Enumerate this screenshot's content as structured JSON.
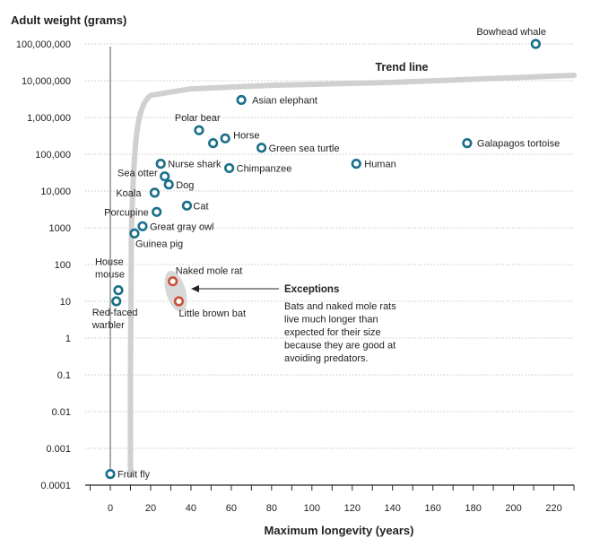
{
  "chart_data": {
    "type": "scatter",
    "title": "",
    "ylabel": "Adult weight (grams)",
    "xlabel": "Maximum longevity (years)",
    "y_scale": "log",
    "ylim": [
      0.0001,
      100000000
    ],
    "xlim": [
      -10,
      230
    ],
    "x_ticks": [
      0,
      20,
      40,
      60,
      80,
      100,
      120,
      140,
      160,
      180,
      200,
      220
    ],
    "x_tick_labels": [
      "0",
      "20",
      "40",
      "60",
      "80",
      "100",
      "120",
      "140",
      "160",
      "180",
      "200",
      "220"
    ],
    "y_ticks": [
      100000000,
      10000000,
      1000000,
      100000,
      10000,
      1000,
      100,
      10,
      1,
      0.1,
      0.01,
      0.001,
      0.0001
    ],
    "y_tick_labels": [
      "100,000,000",
      "10,000,000",
      "1,000,000",
      "100,000",
      "10,000",
      "1000",
      "100",
      "10",
      "1",
      "0.1",
      "0.01",
      "0.001",
      "0.0001"
    ],
    "grid": "horizontal dotted",
    "colors": {
      "normal": "#1a6f8a",
      "exception": "#c8523a",
      "trend": "#d0d0d0",
      "highlight": "#d8d8d8"
    },
    "points": [
      {
        "name": "Bowhead whale",
        "x": 211,
        "y": 100000000,
        "kind": "normal",
        "label": "Bowhead whale"
      },
      {
        "name": "Asian elephant",
        "x": 65,
        "y": 3000000,
        "kind": "normal",
        "label": "Asian elephant"
      },
      {
        "name": "Polar bear",
        "x": 44,
        "y": 450000,
        "kind": "normal",
        "label": "Polar bear"
      },
      {
        "name": "Horse",
        "x": 57,
        "y": 270000,
        "kind": "normal",
        "label": "Horse"
      },
      {
        "name": "Horse 2",
        "x": 51,
        "y": 200000,
        "kind": "normal",
        "label": ""
      },
      {
        "name": "Green sea turtle",
        "x": 75,
        "y": 150000,
        "kind": "normal",
        "label": "Green sea turtle"
      },
      {
        "name": "Galapagos tortoise",
        "x": 177,
        "y": 200000,
        "kind": "normal",
        "label": "Galapagos tortoise"
      },
      {
        "name": "Nurse shark",
        "x": 25,
        "y": 55000,
        "kind": "normal",
        "label": "Nurse shark"
      },
      {
        "name": "Chimpanzee",
        "x": 59,
        "y": 42000,
        "kind": "normal",
        "label": "Chimpanzee"
      },
      {
        "name": "Human",
        "x": 122,
        "y": 55000,
        "kind": "normal",
        "label": "Human"
      },
      {
        "name": "Sea otter",
        "x": 27,
        "y": 25000,
        "kind": "normal",
        "label": "Sea otter"
      },
      {
        "name": "Dog",
        "x": 29,
        "y": 15000,
        "kind": "normal",
        "label": "Dog"
      },
      {
        "name": "Koala",
        "x": 22,
        "y": 9000,
        "kind": "normal",
        "label": "Koala"
      },
      {
        "name": "Cat",
        "x": 38,
        "y": 4000,
        "kind": "normal",
        "label": "Cat"
      },
      {
        "name": "Porcupine",
        "x": 23,
        "y": 2700,
        "kind": "normal",
        "label": "Porcupine"
      },
      {
        "name": "Great gray owl",
        "x": 16,
        "y": 1100,
        "kind": "normal",
        "label": "Great gray owl"
      },
      {
        "name": "Guinea pig",
        "x": 12,
        "y": 700,
        "kind": "normal",
        "label": "Guinea pig"
      },
      {
        "name": "House mouse",
        "x": 4,
        "y": 20,
        "kind": "normal",
        "label": "House\nmouse"
      },
      {
        "name": "Red-faced warbler",
        "x": 3,
        "y": 10,
        "kind": "normal",
        "label": "Red-faced\nwarbler"
      },
      {
        "name": "Naked mole rat",
        "x": 31,
        "y": 35,
        "kind": "exception",
        "label": "Naked mole rat"
      },
      {
        "name": "Little brown bat",
        "x": 34,
        "y": 10,
        "kind": "exception",
        "label": "Little brown bat"
      },
      {
        "name": "Fruit fly",
        "x": 0,
        "y": 0.0002,
        "kind": "normal",
        "label": "Fruit fly"
      }
    ],
    "trend_line": {
      "label": "Trend line",
      "points": [
        [
          10,
          0.0002
        ],
        [
          10,
          0.1
        ],
        [
          10.5,
          1000
        ],
        [
          12,
          300000
        ],
        [
          14,
          2000000
        ],
        [
          20,
          4000000
        ],
        [
          40,
          6000000
        ],
        [
          80,
          7500000
        ],
        [
          140,
          9000000
        ],
        [
          230,
          14000000
        ]
      ]
    },
    "annotation": {
      "title": "Exceptions",
      "lines": [
        "Bats and naked mole rats",
        "live much longer than",
        "expected for their size",
        "because they are good at",
        "avoiding predators."
      ]
    }
  }
}
